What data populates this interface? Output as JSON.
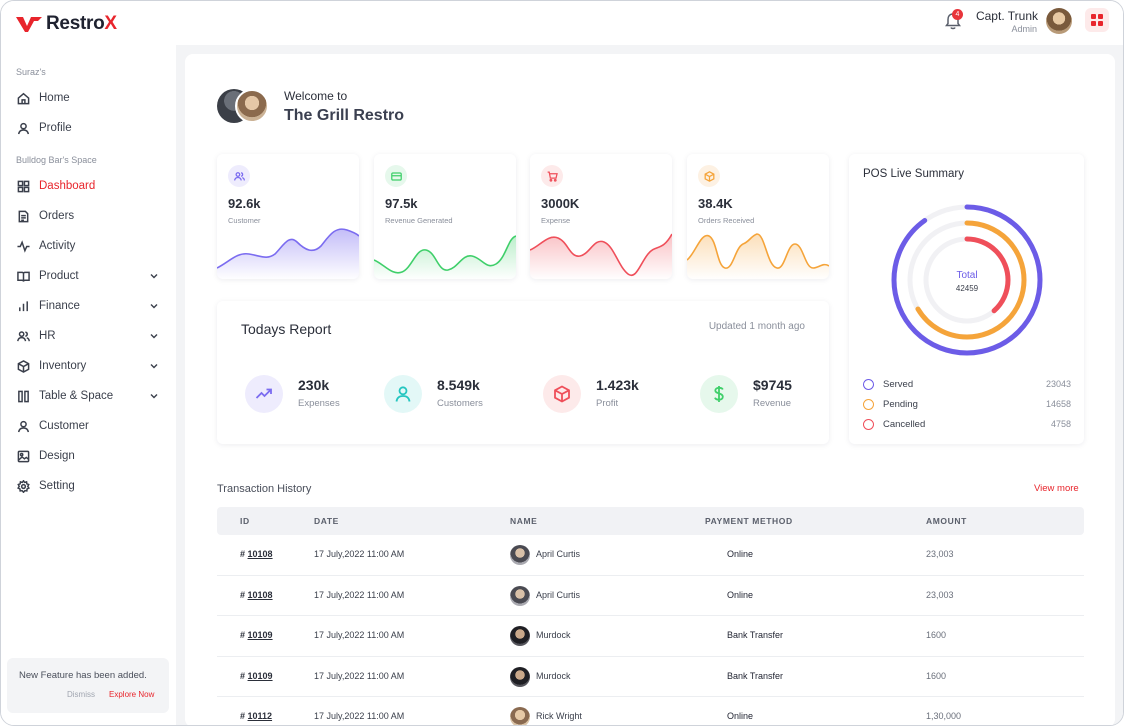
{
  "brand": {
    "name_prefix": "Restro",
    "name_suffix": "X"
  },
  "header": {
    "notification_count": "4",
    "user_name": "Capt. Trunk",
    "user_role": "Admin"
  },
  "sidebar": {
    "section1": "Suraz's",
    "section2": "Bulldog Bar's Space",
    "items": [
      {
        "label": "Home"
      },
      {
        "label": "Profile"
      },
      {
        "label": "Dashboard"
      },
      {
        "label": "Orders"
      },
      {
        "label": "Activity"
      },
      {
        "label": "Product"
      },
      {
        "label": "Finance"
      },
      {
        "label": "HR"
      },
      {
        "label": "Inventory"
      },
      {
        "label": "Table & Space"
      },
      {
        "label": "Customer"
      },
      {
        "label": "Design"
      },
      {
        "label": "Setting"
      }
    ],
    "notice": {
      "text": "New Feature has been added.",
      "dismiss": "Dismiss",
      "explore": "Explore Now"
    }
  },
  "welcome": {
    "line1": "Welcome to",
    "line2": "The Grill Restro"
  },
  "stats": [
    {
      "value": "92.6k",
      "label": "Customer",
      "color": "#7b6cf0"
    },
    {
      "value": "97.5k",
      "label": "Revenue Generated",
      "color": "#3fcf6a"
    },
    {
      "value": "3000K",
      "label": "Expense",
      "color": "#ef4f5a"
    },
    {
      "value": "38.4K",
      "label": "Orders Received",
      "color": "#f5a43a"
    }
  ],
  "report": {
    "title": "Todays Report",
    "updated": "Updated 1 month ago",
    "items": [
      {
        "value": "230k",
        "label": "Expenses"
      },
      {
        "value": "8.549k",
        "label": "Customers"
      },
      {
        "value": "1.423k",
        "label": "Profit"
      },
      {
        "value": "$9745",
        "label": "Revenue"
      }
    ]
  },
  "pos": {
    "title": "POS Live Summary",
    "total_label": "Total",
    "total_value": "42459",
    "legend": [
      {
        "name": "Served",
        "value": "23043",
        "color": "#6c5ce7"
      },
      {
        "name": "Pending",
        "value": "14658",
        "color": "#f5a43a"
      },
      {
        "name": "Cancelled",
        "value": "4758",
        "color": "#ef4f5a"
      }
    ]
  },
  "transactions": {
    "title": "Transaction History",
    "view_more": "View more",
    "columns": [
      "ID",
      "DATE",
      "NAME",
      "PAYMENT METHOD",
      "AMOUNT"
    ],
    "rows": [
      {
        "hash": "#",
        "id": "10108",
        "date": "17 July,2022 11:00 AM",
        "name": "April Curtis",
        "method": "Online",
        "amount": "23,003"
      },
      {
        "hash": "#",
        "id": "10108",
        "date": "17 July,2022 11:00 AM",
        "name": "April Curtis",
        "method": "Online",
        "amount": "23,003"
      },
      {
        "hash": "#",
        "id": "10109",
        "date": "17 July,2022 11:00 AM",
        "name": "Murdock",
        "method": "Bank Transfer",
        "amount": "1600"
      },
      {
        "hash": "#",
        "id": "10109",
        "date": "17 July,2022 11:00 AM",
        "name": "Murdock",
        "method": "Bank Transfer",
        "amount": "1600"
      },
      {
        "hash": "#",
        "id": "10112",
        "date": "17 July,2022 11:00 AM",
        "name": "Rick Wright",
        "method": "Online",
        "amount": "1,30,000"
      }
    ]
  }
}
